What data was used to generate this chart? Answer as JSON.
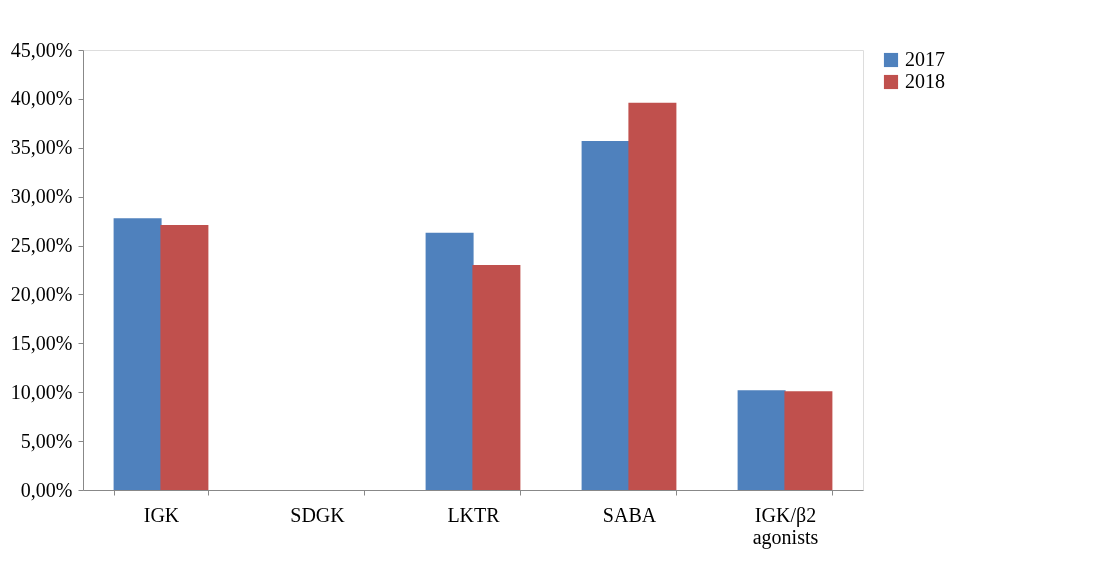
{
  "chart_data": {
    "type": "bar",
    "categories": [
      "IGK",
      "SDGK",
      "LKTR",
      "SABA",
      "IGK/β2 agonists"
    ],
    "series": [
      {
        "name": "2017",
        "color": "#4f81bd",
        "values": [
          27.8,
          0,
          26.3,
          35.7,
          10.2
        ]
      },
      {
        "name": "2018",
        "color": "#c0504d",
        "values": [
          27.1,
          0,
          23.0,
          39.6,
          10.1
        ]
      }
    ],
    "ylim": [
      0,
      45
    ],
    "yticks": [
      {
        "value": 0,
        "label": "0,00%"
      },
      {
        "value": 5,
        "label": "5,00%"
      },
      {
        "value": 10,
        "label": "10,00%"
      },
      {
        "value": 15,
        "label": "15,00%"
      },
      {
        "value": 20,
        "label": "20,00%"
      },
      {
        "value": 25,
        "label": "25,00%"
      },
      {
        "value": 30,
        "label": "30,00%"
      },
      {
        "value": 35,
        "label": "35,00%"
      },
      {
        "value": 40,
        "label": "40,00%"
      },
      {
        "value": 45,
        "label": "45,00%"
      }
    ],
    "grid": false,
    "legend": "right"
  }
}
